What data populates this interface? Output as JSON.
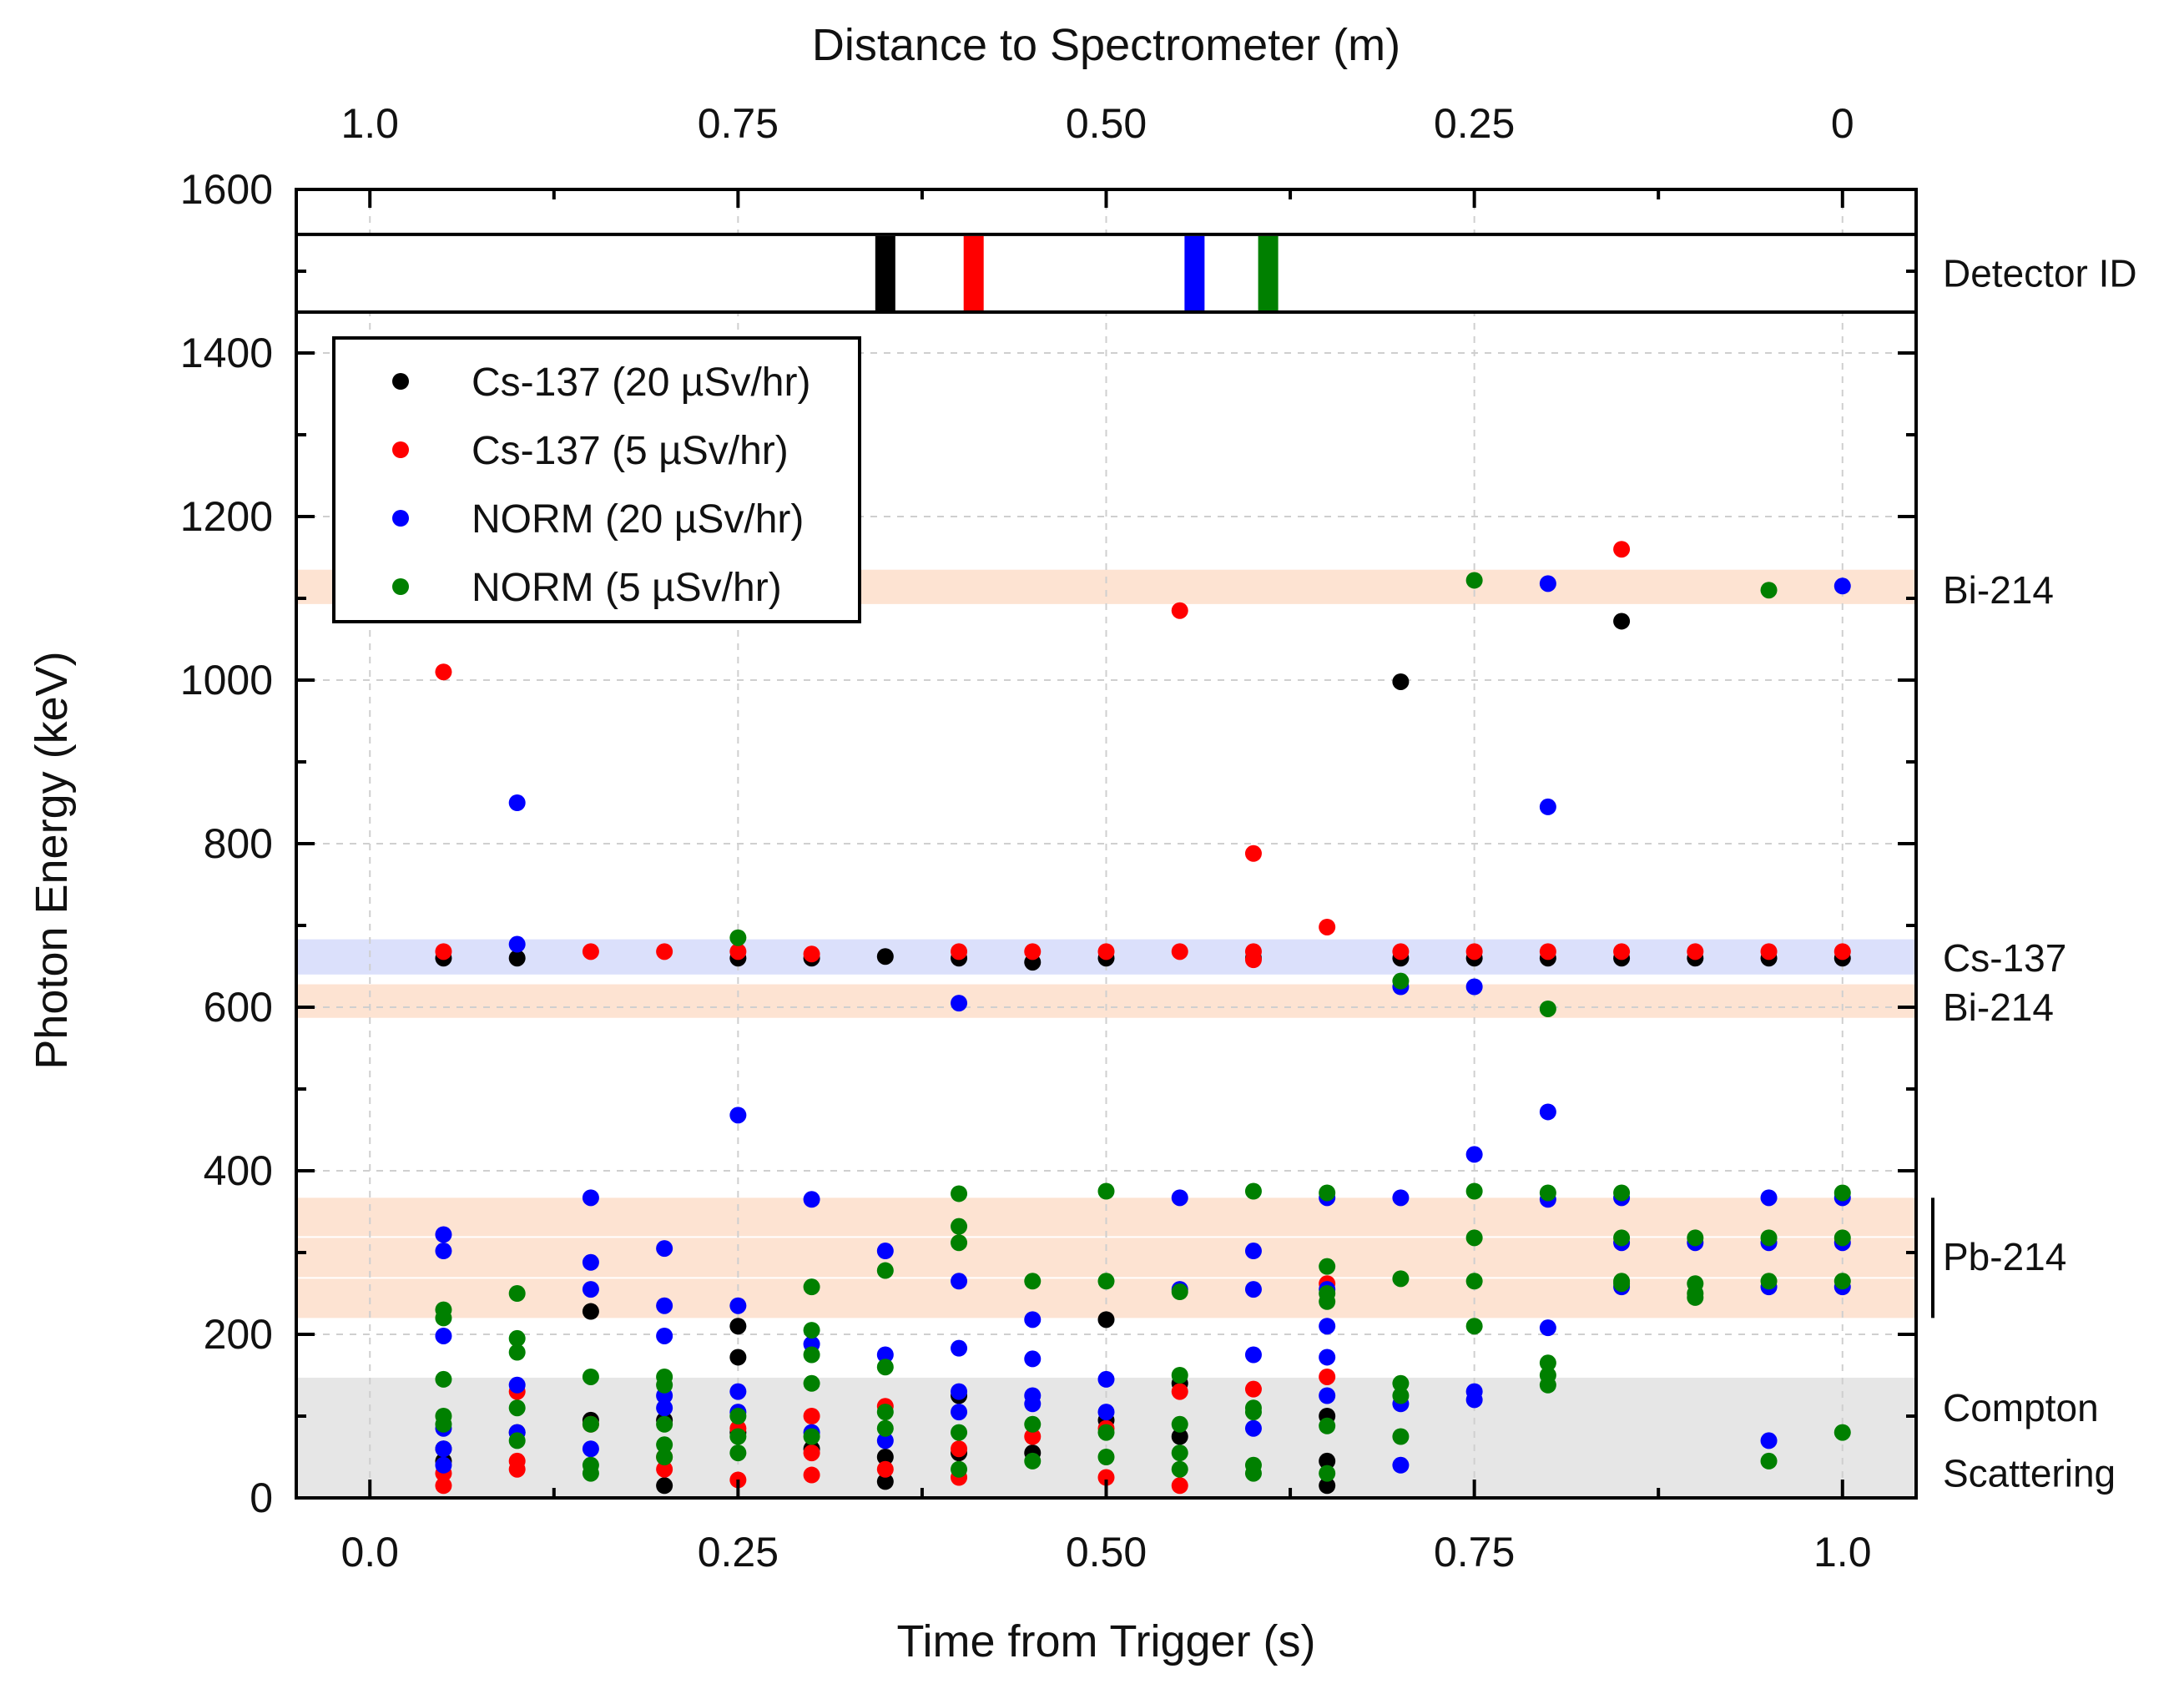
{
  "chart_data": {
    "type": "scatter",
    "xlabel": "Time from Trigger (s)",
    "ylabel": "Photon Energy (keV)",
    "x2label": "Distance to Spectrometer (m)",
    "xlim": [
      -0.05,
      1.05
    ],
    "ylim": [
      0,
      1600
    ],
    "x_ticks": [
      0.0,
      0.25,
      0.5,
      0.75,
      1.0
    ],
    "x_tick_labels": [
      "0.0",
      "0.25",
      "0.50",
      "0.75",
      "1.0"
    ],
    "x2_ticks": [
      0.0,
      0.25,
      0.5,
      0.75,
      1.0
    ],
    "x2_tick_labels": [
      "1.0",
      "0.75",
      "0.50",
      "0.25",
      "0"
    ],
    "y_ticks": [
      0,
      200,
      400,
      600,
      800,
      1000,
      1200,
      1400,
      1600
    ],
    "y_tick_labels": [
      "0",
      "200",
      "400",
      "600",
      "800",
      "1000",
      "1200",
      "1400",
      "1600"
    ],
    "grid": true,
    "legend_position": "top-left",
    "detector_panel": {
      "label": "Detector ID",
      "y_range": [
        1450,
        1545
      ],
      "markers": [
        {
          "x": 0.35,
          "color": "#000000"
        },
        {
          "x": 0.41,
          "color": "#ff0000"
        },
        {
          "x": 0.56,
          "color": "#0000ff"
        },
        {
          "x": 0.61,
          "color": "#008000"
        }
      ]
    },
    "bands": [
      {
        "label": "Bi-214",
        "y_min": 1093,
        "y_max": 1135,
        "color": "#fde3d2"
      },
      {
        "label": "Cs-137",
        "y_min": 640,
        "y_max": 683,
        "color": "#dbe0fb"
      },
      {
        "label": "Bi-214",
        "y_min": 587,
        "y_max": 628,
        "color": "#fde3d2"
      },
      {
        "label": "",
        "y_min": 320,
        "y_max": 367,
        "color": "#fde3d2"
      },
      {
        "label": "",
        "y_min": 270,
        "y_max": 318,
        "color": "#fde3d2"
      },
      {
        "label": "",
        "y_min": 220,
        "y_max": 268,
        "color": "#fde3d2"
      },
      {
        "label": "",
        "y_min": 0,
        "y_max": 147,
        "color": "#e6e6e6"
      }
    ],
    "band_labels": [
      {
        "text": "Bi-214",
        "y": 1110
      },
      {
        "text": "Cs-137",
        "y": 660
      },
      {
        "text": "Bi-214",
        "y": 600
      },
      {
        "text": "Pb-214",
        "y": 295
      },
      {
        "text": "Compton",
        "y": 110
      },
      {
        "text": "Scattering",
        "y": 30
      }
    ],
    "series": [
      {
        "name": "Cs-137 (20 µSv/hr)",
        "color": "#000000",
        "points": [
          [
            0.05,
            660
          ],
          [
            0.05,
            60
          ],
          [
            0.05,
            45
          ],
          [
            0.1,
            660
          ],
          [
            0.1,
            80
          ],
          [
            0.15,
            228
          ],
          [
            0.15,
            95
          ],
          [
            0.2,
            95
          ],
          [
            0.2,
            15
          ],
          [
            0.25,
            660
          ],
          [
            0.25,
            210
          ],
          [
            0.25,
            172
          ],
          [
            0.25,
            80
          ],
          [
            0.3,
            660
          ],
          [
            0.3,
            60
          ],
          [
            0.35,
            662
          ],
          [
            0.35,
            50
          ],
          [
            0.35,
            20
          ],
          [
            0.4,
            660
          ],
          [
            0.4,
            125
          ],
          [
            0.4,
            55
          ],
          [
            0.45,
            655
          ],
          [
            0.45,
            55
          ],
          [
            0.5,
            660
          ],
          [
            0.5,
            218
          ],
          [
            0.5,
            95
          ],
          [
            0.55,
            140
          ],
          [
            0.55,
            75
          ],
          [
            0.6,
            660
          ],
          [
            0.65,
            100
          ],
          [
            0.65,
            45
          ],
          [
            0.65,
            15
          ],
          [
            0.7,
            998
          ],
          [
            0.7,
            660
          ],
          [
            0.75,
            660
          ],
          [
            0.8,
            660
          ],
          [
            0.85,
            1072
          ],
          [
            0.85,
            660
          ],
          [
            0.9,
            660
          ],
          [
            0.95,
            660
          ],
          [
            1.0,
            660
          ]
        ]
      },
      {
        "name": "Cs-137 (5 µSv/hr)",
        "color": "#ff0000",
        "points": [
          [
            0.05,
            1010
          ],
          [
            0.05,
            668
          ],
          [
            0.05,
            30
          ],
          [
            0.05,
            15
          ],
          [
            0.1,
            130
          ],
          [
            0.1,
            45
          ],
          [
            0.1,
            35
          ],
          [
            0.15,
            668
          ],
          [
            0.15,
            90
          ],
          [
            0.2,
            668
          ],
          [
            0.2,
            50
          ],
          [
            0.2,
            35
          ],
          [
            0.25,
            668
          ],
          [
            0.25,
            85
          ],
          [
            0.25,
            22
          ],
          [
            0.3,
            665
          ],
          [
            0.3,
            100
          ],
          [
            0.3,
            55
          ],
          [
            0.3,
            28
          ],
          [
            0.35,
            112
          ],
          [
            0.35,
            35
          ],
          [
            0.4,
            668
          ],
          [
            0.4,
            60
          ],
          [
            0.4,
            25
          ],
          [
            0.45,
            668
          ],
          [
            0.45,
            75
          ],
          [
            0.5,
            668
          ],
          [
            0.5,
            85
          ],
          [
            0.5,
            25
          ],
          [
            0.55,
            1085
          ],
          [
            0.55,
            668
          ],
          [
            0.55,
            130
          ],
          [
            0.55,
            15
          ],
          [
            0.6,
            788
          ],
          [
            0.6,
            668
          ],
          [
            0.6,
            658
          ],
          [
            0.6,
            133
          ],
          [
            0.65,
            698
          ],
          [
            0.65,
            262
          ],
          [
            0.65,
            148
          ],
          [
            0.7,
            668
          ],
          [
            0.75,
            668
          ],
          [
            0.8,
            668
          ],
          [
            0.85,
            1160
          ],
          [
            0.85,
            668
          ],
          [
            0.9,
            668
          ],
          [
            0.95,
            668
          ],
          [
            1.0,
            668
          ]
        ]
      },
      {
        "name": "NORM (20 µSv/hr)",
        "color": "#0000ff",
        "points": [
          [
            0.05,
            322
          ],
          [
            0.05,
            302
          ],
          [
            0.05,
            198
          ],
          [
            0.05,
            85
          ],
          [
            0.05,
            60
          ],
          [
            0.05,
            40
          ],
          [
            0.1,
            850
          ],
          [
            0.1,
            677
          ],
          [
            0.1,
            138
          ],
          [
            0.1,
            80
          ],
          [
            0.15,
            367
          ],
          [
            0.15,
            288
          ],
          [
            0.15,
            255
          ],
          [
            0.15,
            60
          ],
          [
            0.2,
            305
          ],
          [
            0.2,
            235
          ],
          [
            0.2,
            198
          ],
          [
            0.2,
            125
          ],
          [
            0.2,
            110
          ],
          [
            0.25,
            468
          ],
          [
            0.25,
            235
          ],
          [
            0.25,
            130
          ],
          [
            0.25,
            105
          ],
          [
            0.3,
            365
          ],
          [
            0.3,
            188
          ],
          [
            0.3,
            80
          ],
          [
            0.35,
            302
          ],
          [
            0.35,
            175
          ],
          [
            0.35,
            70
          ],
          [
            0.4,
            605
          ],
          [
            0.4,
            265
          ],
          [
            0.4,
            183
          ],
          [
            0.4,
            130
          ],
          [
            0.4,
            105
          ],
          [
            0.45,
            218
          ],
          [
            0.45,
            170
          ],
          [
            0.45,
            125
          ],
          [
            0.45,
            115
          ],
          [
            0.5,
            145
          ],
          [
            0.5,
            105
          ],
          [
            0.55,
            367
          ],
          [
            0.55,
            255
          ],
          [
            0.6,
            302
          ],
          [
            0.6,
            255
          ],
          [
            0.6,
            175
          ],
          [
            0.6,
            85
          ],
          [
            0.65,
            367
          ],
          [
            0.65,
            255
          ],
          [
            0.65,
            210
          ],
          [
            0.65,
            172
          ],
          [
            0.65,
            125
          ],
          [
            0.7,
            625
          ],
          [
            0.7,
            367
          ],
          [
            0.7,
            115
          ],
          [
            0.7,
            40
          ],
          [
            0.75,
            625
          ],
          [
            0.75,
            420
          ],
          [
            0.75,
            130
          ],
          [
            0.75,
            120
          ],
          [
            0.8,
            1118
          ],
          [
            0.8,
            845
          ],
          [
            0.8,
            472
          ],
          [
            0.8,
            365
          ],
          [
            0.8,
            208
          ],
          [
            0.85,
            367
          ],
          [
            0.85,
            312
          ],
          [
            0.85,
            258
          ],
          [
            0.9,
            312
          ],
          [
            0.95,
            367
          ],
          [
            0.95,
            312
          ],
          [
            0.95,
            258
          ],
          [
            0.95,
            70
          ],
          [
            1.0,
            1115
          ],
          [
            1.0,
            367
          ],
          [
            1.0,
            312
          ],
          [
            1.0,
            258
          ]
        ]
      },
      {
        "name": "NORM (5 µSv/hr)",
        "color": "#008000",
        "points": [
          [
            0.05,
            230
          ],
          [
            0.05,
            220
          ],
          [
            0.05,
            145
          ],
          [
            0.05,
            100
          ],
          [
            0.05,
            90
          ],
          [
            0.1,
            250
          ],
          [
            0.1,
            195
          ],
          [
            0.1,
            178
          ],
          [
            0.1,
            110
          ],
          [
            0.1,
            70
          ],
          [
            0.15,
            148
          ],
          [
            0.15,
            90
          ],
          [
            0.15,
            40
          ],
          [
            0.15,
            30
          ],
          [
            0.2,
            148
          ],
          [
            0.2,
            138
          ],
          [
            0.2,
            90
          ],
          [
            0.2,
            65
          ],
          [
            0.2,
            50
          ],
          [
            0.25,
            685
          ],
          [
            0.25,
            100
          ],
          [
            0.25,
            75
          ],
          [
            0.25,
            55
          ],
          [
            0.3,
            258
          ],
          [
            0.3,
            205
          ],
          [
            0.3,
            175
          ],
          [
            0.3,
            140
          ],
          [
            0.3,
            75
          ],
          [
            0.35,
            278
          ],
          [
            0.35,
            160
          ],
          [
            0.35,
            105
          ],
          [
            0.35,
            85
          ],
          [
            0.4,
            372
          ],
          [
            0.4,
            332
          ],
          [
            0.4,
            312
          ],
          [
            0.4,
            80
          ],
          [
            0.4,
            35
          ],
          [
            0.45,
            265
          ],
          [
            0.45,
            90
          ],
          [
            0.45,
            45
          ],
          [
            0.5,
            375
          ],
          [
            0.5,
            265
          ],
          [
            0.5,
            80
          ],
          [
            0.5,
            50
          ],
          [
            0.55,
            252
          ],
          [
            0.55,
            150
          ],
          [
            0.55,
            90
          ],
          [
            0.55,
            55
          ],
          [
            0.55,
            35
          ],
          [
            0.6,
            375
          ],
          [
            0.6,
            110
          ],
          [
            0.6,
            105
          ],
          [
            0.6,
            40
          ],
          [
            0.6,
            30
          ],
          [
            0.65,
            373
          ],
          [
            0.65,
            283
          ],
          [
            0.65,
            250
          ],
          [
            0.65,
            240
          ],
          [
            0.65,
            88
          ],
          [
            0.65,
            30
          ],
          [
            0.7,
            632
          ],
          [
            0.7,
            268
          ],
          [
            0.7,
            140
          ],
          [
            0.7,
            125
          ],
          [
            0.7,
            75
          ],
          [
            0.75,
            1122
          ],
          [
            0.75,
            375
          ],
          [
            0.75,
            318
          ],
          [
            0.75,
            265
          ],
          [
            0.75,
            210
          ],
          [
            0.8,
            598
          ],
          [
            0.8,
            373
          ],
          [
            0.8,
            165
          ],
          [
            0.8,
            150
          ],
          [
            0.8,
            138
          ],
          [
            0.85,
            373
          ],
          [
            0.85,
            318
          ],
          [
            0.85,
            265
          ],
          [
            0.85,
            262
          ],
          [
            0.9,
            318
          ],
          [
            0.9,
            262
          ],
          [
            0.9,
            250
          ],
          [
            0.9,
            245
          ],
          [
            0.95,
            1110
          ],
          [
            0.95,
            318
          ],
          [
            0.95,
            265
          ],
          [
            0.95,
            45
          ],
          [
            1.0,
            373
          ],
          [
            1.0,
            318
          ],
          [
            1.0,
            265
          ],
          [
            1.0,
            80
          ]
        ]
      }
    ]
  }
}
